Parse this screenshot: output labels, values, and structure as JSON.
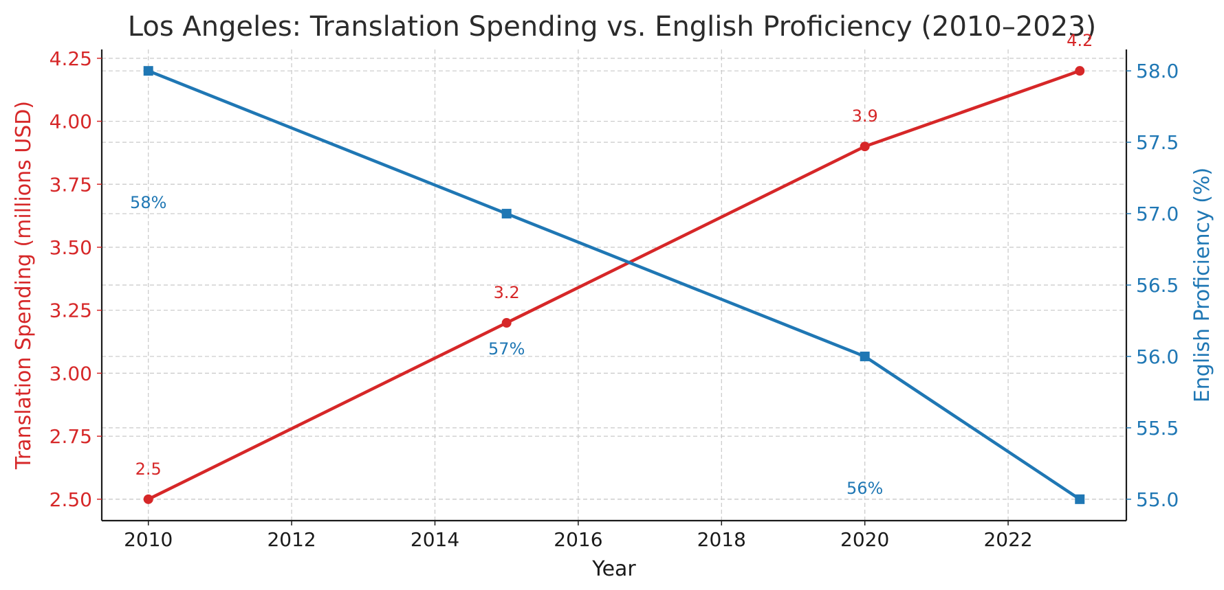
{
  "chart_data": {
    "type": "line",
    "title": "Los Angeles: Translation Spending vs. English Proficiency (2010–2023)",
    "xlabel": "Year",
    "ylabel_left": "Translation Spending (millions USD)",
    "ylabel_right": "English Proficiency (%)",
    "xlim": [
      2009.35,
      2023.65
    ],
    "x_ticks": [
      2010,
      2012,
      2014,
      2016,
      2018,
      2020,
      2022
    ],
    "ylim_left": [
      2.415,
      4.285
    ],
    "ylim_right": [
      54.85,
      58.15
    ],
    "y_ticks_left": [
      "2.50",
      "2.75",
      "3.00",
      "3.25",
      "3.50",
      "3.75",
      "4.00",
      "4.25"
    ],
    "y_ticks_right": [
      "55.0",
      "55.5",
      "56.0",
      "56.5",
      "57.0",
      "57.5",
      "58.0"
    ],
    "grid": true,
    "colors": {
      "left": "#d62728",
      "right": "#1f77b4"
    },
    "series": [
      {
        "name": "Translation Spending",
        "axis": "left",
        "marker": "circle",
        "x": [
          2010,
          2015,
          2020,
          2023
        ],
        "values": [
          2.5,
          3.2,
          3.9,
          4.2
        ],
        "labels": [
          "2.5",
          "3.2",
          "3.9",
          "4.2"
        ]
      },
      {
        "name": "English Proficiency",
        "axis": "right",
        "marker": "square",
        "x": [
          2010,
          2015,
          2020,
          2023
        ],
        "values": [
          58,
          57,
          56,
          55
        ],
        "labels": [
          "58%",
          "57%",
          "56%",
          ""
        ]
      }
    ]
  }
}
